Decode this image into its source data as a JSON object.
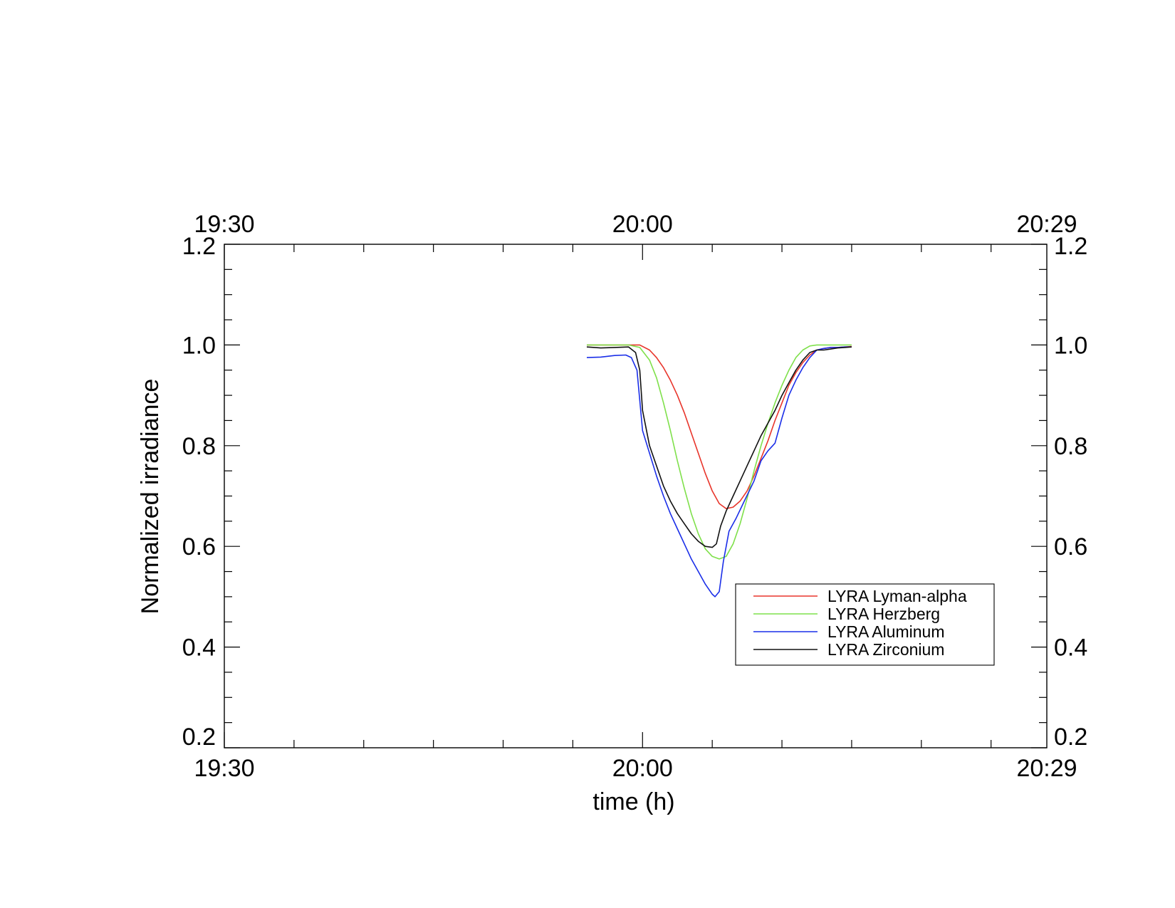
{
  "chart_data": {
    "type": "line",
    "xlabel": "time (h)",
    "ylabel": "Normalized irradiance",
    "xlim": [
      "19:30",
      "20:29"
    ],
    "ylim": [
      0.2,
      1.2
    ],
    "x_ticks_major": [
      "19:30",
      "20:00",
      "20:29"
    ],
    "y_ticks": [
      "0.2",
      "0.4",
      "0.6",
      "0.8",
      "1.0",
      "1.2"
    ],
    "grid": false,
    "legend_position": "lower-right",
    "series": [
      {
        "name": "LYRA Lyman-alpha",
        "color": "#e8352b",
        "x": [
          "19:56",
          "19:58",
          "19:59",
          "19:59.8",
          "20:00.5",
          "20:01",
          "20:01.5",
          "20:02",
          "20:02.5",
          "20:03",
          "20:03.5",
          "20:04",
          "20:04.5",
          "20:05",
          "20:05.5",
          "20:06",
          "20:06.5",
          "20:07",
          "20:07.5",
          "20:08",
          "20:08.5",
          "20:09",
          "20:09.5",
          "20:10",
          "20:10.5",
          "20:11",
          "20:11.5",
          "20:12",
          "20:12.5",
          "20:13",
          "20:13.5",
          "20:14",
          "20:14.5",
          "20:15"
        ],
        "values": [
          1.0,
          1.0,
          1.0,
          1.0,
          0.99,
          0.975,
          0.955,
          0.93,
          0.9,
          0.865,
          0.825,
          0.785,
          0.745,
          0.71,
          0.685,
          0.675,
          0.678,
          0.69,
          0.71,
          0.74,
          0.775,
          0.81,
          0.85,
          0.885,
          0.92,
          0.945,
          0.965,
          0.98,
          0.99,
          0.993,
          0.995,
          0.995,
          0.996,
          0.997
        ]
      },
      {
        "name": "LYRA Herzberg",
        "color": "#7fe04b",
        "x": [
          "19:56",
          "19:58",
          "19:59",
          "19:59.8",
          "20:00.5",
          "20:01",
          "20:01.5",
          "20:02",
          "20:02.5",
          "20:03",
          "20:03.5",
          "20:04",
          "20:04.5",
          "20:05",
          "20:05.5",
          "20:06",
          "20:06.5",
          "20:07",
          "20:07.5",
          "20:08",
          "20:08.5",
          "20:09",
          "20:09.5",
          "20:10",
          "20:10.5",
          "20:11",
          "20:11.5",
          "20:12",
          "20:12.5",
          "20:13",
          "20:13.5",
          "20:14",
          "20:14.5",
          "20:15"
        ],
        "values": [
          1.0,
          1.0,
          1.0,
          0.995,
          0.97,
          0.935,
          0.885,
          0.83,
          0.77,
          0.715,
          0.665,
          0.625,
          0.595,
          0.58,
          0.575,
          0.58,
          0.605,
          0.645,
          0.695,
          0.75,
          0.8,
          0.845,
          0.885,
          0.92,
          0.95,
          0.975,
          0.99,
          0.998,
          1.0,
          1.0,
          1.0,
          1.0,
          1.0,
          1.0
        ]
      },
      {
        "name": "LYRA Aluminum",
        "color": "#1a2ee8",
        "x": [
          "19:56",
          "19:57",
          "19:58",
          "19:58.8",
          "19:59.2",
          "19:59.6",
          "20:00",
          "20:00.5",
          "20:01",
          "20:01.5",
          "20:02",
          "20:02.5",
          "20:03",
          "20:03.5",
          "20:04",
          "20:04.5",
          "20:05",
          "20:05.2",
          "20:05.5",
          "20:05.8",
          "20:06.2",
          "20:06.7",
          "20:07.3",
          "20:08",
          "20:08.5",
          "20:09",
          "20:09.5",
          "20:10",
          "20:10.5",
          "20:11",
          "20:11.5",
          "20:12",
          "20:12.5",
          "20:13",
          "20:13.5",
          "20:14",
          "20:14.5",
          "20:15"
        ],
        "values": [
          0.975,
          0.976,
          0.979,
          0.98,
          0.975,
          0.95,
          0.83,
          0.785,
          0.74,
          0.7,
          0.665,
          0.635,
          0.605,
          0.575,
          0.55,
          0.525,
          0.505,
          0.5,
          0.51,
          0.57,
          0.63,
          0.655,
          0.69,
          0.73,
          0.77,
          0.79,
          0.805,
          0.855,
          0.9,
          0.93,
          0.955,
          0.975,
          0.99,
          0.993,
          0.995,
          0.995,
          0.996,
          0.996
        ]
      },
      {
        "name": "LYRA Zirconium",
        "color": "#111111",
        "x": [
          "19:56",
          "19:57",
          "19:58",
          "19:59",
          "19:59.5",
          "19:59.8",
          "20:00",
          "20:00.5",
          "20:01",
          "20:01.5",
          "20:02",
          "20:02.5",
          "20:03",
          "20:03.5",
          "20:04",
          "20:04.5",
          "20:05",
          "20:05.3",
          "20:05.6",
          "20:06",
          "20:06.5",
          "20:07",
          "20:07.5",
          "20:08",
          "20:08.5",
          "20:09",
          "20:09.5",
          "20:10",
          "20:10.5",
          "20:11",
          "20:11.5",
          "20:12",
          "20:12.5",
          "20:13",
          "20:13.5",
          "20:14",
          "20:14.5",
          "20:15"
        ],
        "values": [
          0.996,
          0.994,
          0.995,
          0.996,
          0.985,
          0.95,
          0.87,
          0.8,
          0.76,
          0.72,
          0.69,
          0.665,
          0.645,
          0.625,
          0.61,
          0.6,
          0.598,
          0.605,
          0.64,
          0.67,
          0.7,
          0.73,
          0.76,
          0.79,
          0.82,
          0.845,
          0.87,
          0.9,
          0.925,
          0.95,
          0.97,
          0.985,
          0.99,
          0.99,
          0.992,
          0.994,
          0.995,
          0.996
        ]
      }
    ]
  }
}
